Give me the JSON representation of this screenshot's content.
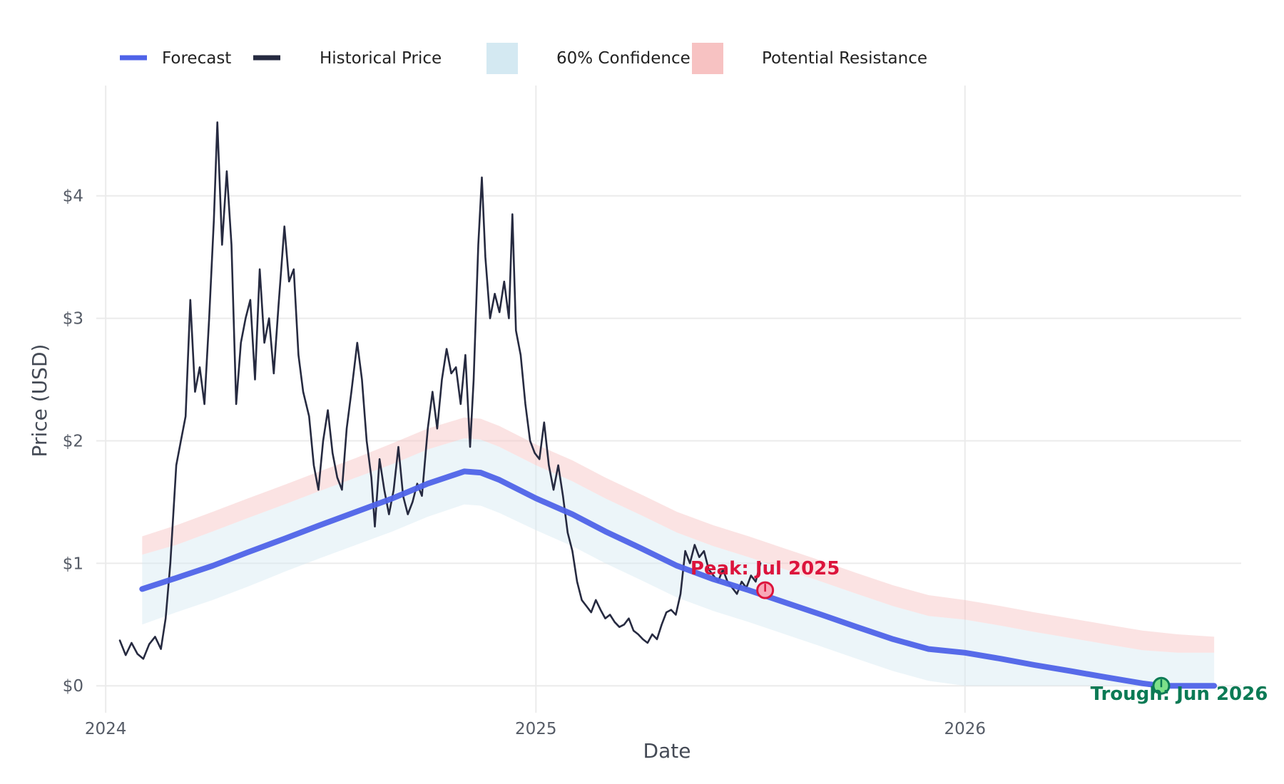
{
  "chart_data": {
    "type": "line",
    "title": "",
    "xlabel": "Date",
    "ylabel": "Price (USD)",
    "x_ticks": [
      "2024",
      "2025",
      "2026"
    ],
    "y_ticks": [
      "$0",
      "$1",
      "$2",
      "$3",
      "$4"
    ],
    "xlim": [
      "2023-12-24",
      "2026-08-24"
    ],
    "ylim": [
      -0.22,
      4.9
    ],
    "grid": true,
    "legend_position": "top-left",
    "legend": [
      {
        "label": "Forecast",
        "kind": "line",
        "color": "#4f63e8"
      },
      {
        "label": "Historical Price",
        "kind": "line",
        "color": "#262a40"
      },
      {
        "label": "60% Confidence",
        "kind": "patch",
        "color": "#d4e9f2"
      },
      {
        "label": "Potential Resistance",
        "kind": "patch",
        "color": "#f7c2c2"
      }
    ],
    "series": [
      {
        "name": "Historical Price",
        "color": "#262a40",
        "points": [
          [
            "2024-01-13",
            0.37
          ],
          [
            "2024-01-18",
            0.25
          ],
          [
            "2024-01-23",
            0.35
          ],
          [
            "2024-01-28",
            0.26
          ],
          [
            "2024-02-02",
            0.22
          ],
          [
            "2024-02-07",
            0.34
          ],
          [
            "2024-02-12",
            0.4
          ],
          [
            "2024-02-17",
            0.3
          ],
          [
            "2024-02-21",
            0.55
          ],
          [
            "2024-02-25",
            1.0
          ],
          [
            "2024-03-01",
            1.8
          ],
          [
            "2024-03-05",
            2.0
          ],
          [
            "2024-03-09",
            2.2
          ],
          [
            "2024-03-13",
            3.15
          ],
          [
            "2024-03-17",
            2.4
          ],
          [
            "2024-03-21",
            2.6
          ],
          [
            "2024-03-25",
            2.3
          ],
          [
            "2024-03-29",
            3.0
          ],
          [
            "2024-04-02",
            3.8
          ],
          [
            "2024-04-05",
            4.6
          ],
          [
            "2024-04-09",
            3.6
          ],
          [
            "2024-04-13",
            4.2
          ],
          [
            "2024-04-17",
            3.6
          ],
          [
            "2024-04-21",
            2.3
          ],
          [
            "2024-04-25",
            2.8
          ],
          [
            "2024-04-29",
            3.0
          ],
          [
            "2024-05-03",
            3.15
          ],
          [
            "2024-05-07",
            2.5
          ],
          [
            "2024-05-11",
            3.4
          ],
          [
            "2024-05-15",
            2.8
          ],
          [
            "2024-05-19",
            3.0
          ],
          [
            "2024-05-23",
            2.55
          ],
          [
            "2024-05-27",
            3.1
          ],
          [
            "2024-06-01",
            3.75
          ],
          [
            "2024-06-05",
            3.3
          ],
          [
            "2024-06-09",
            3.4
          ],
          [
            "2024-06-13",
            2.7
          ],
          [
            "2024-06-17",
            2.4
          ],
          [
            "2024-06-22",
            2.2
          ],
          [
            "2024-06-26",
            1.8
          ],
          [
            "2024-06-30",
            1.6
          ],
          [
            "2024-07-04",
            2.0
          ],
          [
            "2024-07-08",
            2.25
          ],
          [
            "2024-07-12",
            1.9
          ],
          [
            "2024-07-16",
            1.7
          ],
          [
            "2024-07-20",
            1.6
          ],
          [
            "2024-07-24",
            2.1
          ],
          [
            "2024-07-28",
            2.4
          ],
          [
            "2024-08-02",
            2.8
          ],
          [
            "2024-08-06",
            2.5
          ],
          [
            "2024-08-10",
            2.0
          ],
          [
            "2024-08-14",
            1.7
          ],
          [
            "2024-08-17",
            1.3
          ],
          [
            "2024-08-21",
            1.85
          ],
          [
            "2024-08-25",
            1.6
          ],
          [
            "2024-08-29",
            1.4
          ],
          [
            "2024-09-02",
            1.6
          ],
          [
            "2024-09-06",
            1.95
          ],
          [
            "2024-09-10",
            1.55
          ],
          [
            "2024-09-14",
            1.4
          ],
          [
            "2024-09-18",
            1.5
          ],
          [
            "2024-09-22",
            1.65
          ],
          [
            "2024-09-26",
            1.55
          ],
          [
            "2024-10-01",
            2.1
          ],
          [
            "2024-10-05",
            2.4
          ],
          [
            "2024-10-09",
            2.1
          ],
          [
            "2024-10-13",
            2.5
          ],
          [
            "2024-10-17",
            2.75
          ],
          [
            "2024-10-21",
            2.55
          ],
          [
            "2024-10-25",
            2.6
          ],
          [
            "2024-10-29",
            2.3
          ],
          [
            "2024-11-02",
            2.7
          ],
          [
            "2024-11-06",
            1.95
          ],
          [
            "2024-11-09",
            2.5
          ],
          [
            "2024-11-13",
            3.6
          ],
          [
            "2024-11-16",
            4.15
          ],
          [
            "2024-11-19",
            3.5
          ],
          [
            "2024-11-23",
            3.0
          ],
          [
            "2024-11-27",
            3.2
          ],
          [
            "2024-12-01",
            3.05
          ],
          [
            "2024-12-05",
            3.3
          ],
          [
            "2024-12-09",
            3.0
          ],
          [
            "2024-12-12",
            3.85
          ],
          [
            "2024-12-15",
            2.9
          ],
          [
            "2024-12-19",
            2.7
          ],
          [
            "2024-12-23",
            2.3
          ],
          [
            "2024-12-27",
            2.0
          ],
          [
            "2024-12-31",
            1.9
          ],
          [
            "2025-01-04",
            1.85
          ],
          [
            "2025-01-08",
            2.15
          ],
          [
            "2025-01-12",
            1.8
          ],
          [
            "2025-01-16",
            1.6
          ],
          [
            "2025-01-20",
            1.8
          ],
          [
            "2025-01-24",
            1.55
          ],
          [
            "2025-01-28",
            1.25
          ],
          [
            "2025-02-01",
            1.1
          ],
          [
            "2025-02-05",
            0.85
          ],
          [
            "2025-02-09",
            0.7
          ],
          [
            "2025-02-13",
            0.65
          ],
          [
            "2025-02-17",
            0.6
          ],
          [
            "2025-02-21",
            0.7
          ],
          [
            "2025-02-25",
            0.62
          ],
          [
            "2025-03-01",
            0.55
          ],
          [
            "2025-03-05",
            0.58
          ],
          [
            "2025-03-09",
            0.52
          ],
          [
            "2025-03-13",
            0.48
          ],
          [
            "2025-03-17",
            0.5
          ],
          [
            "2025-03-21",
            0.55
          ],
          [
            "2025-03-25",
            0.45
          ],
          [
            "2025-03-29",
            0.42
          ],
          [
            "2025-04-02",
            0.38
          ],
          [
            "2025-04-06",
            0.35
          ],
          [
            "2025-04-10",
            0.42
          ],
          [
            "2025-04-14",
            0.38
          ],
          [
            "2025-04-18",
            0.5
          ],
          [
            "2025-04-22",
            0.6
          ],
          [
            "2025-04-26",
            0.62
          ],
          [
            "2025-04-30",
            0.58
          ],
          [
            "2025-05-04",
            0.75
          ],
          [
            "2025-05-08",
            1.1
          ],
          [
            "2025-05-12",
            1.0
          ],
          [
            "2025-05-16",
            1.15
          ],
          [
            "2025-05-20",
            1.05
          ],
          [
            "2025-05-24",
            1.1
          ],
          [
            "2025-05-28",
            0.95
          ],
          [
            "2025-06-01",
            0.9
          ],
          [
            "2025-06-05",
            0.85
          ],
          [
            "2025-06-09",
            0.95
          ],
          [
            "2025-06-13",
            0.85
          ],
          [
            "2025-06-17",
            0.8
          ],
          [
            "2025-06-21",
            0.75
          ],
          [
            "2025-06-25",
            0.85
          ],
          [
            "2025-06-29",
            0.8
          ],
          [
            "2025-07-03",
            0.9
          ],
          [
            "2025-07-07",
            0.85
          ],
          [
            "2025-07-11",
            1.0
          ]
        ]
      },
      {
        "name": "Forecast",
        "color": "#4f63e8",
        "points": [
          [
            "2024-02-01",
            0.79
          ],
          [
            "2024-03-01",
            0.88
          ],
          [
            "2024-04-01",
            0.98
          ],
          [
            "2024-05-01",
            1.09
          ],
          [
            "2024-06-01",
            1.2
          ],
          [
            "2024-07-01",
            1.31
          ],
          [
            "2024-08-01",
            1.42
          ],
          [
            "2024-09-01",
            1.53
          ],
          [
            "2024-10-01",
            1.65
          ],
          [
            "2024-11-01",
            1.75
          ],
          [
            "2024-11-15",
            1.74
          ],
          [
            "2024-12-01",
            1.68
          ],
          [
            "2025-01-01",
            1.53
          ],
          [
            "2025-02-01",
            1.4
          ],
          [
            "2025-03-01",
            1.26
          ],
          [
            "2025-04-01",
            1.12
          ],
          [
            "2025-05-01",
            0.98
          ],
          [
            "2025-06-01",
            0.87
          ],
          [
            "2025-07-01",
            0.78
          ],
          [
            "2025-08-01",
            0.68
          ],
          [
            "2025-09-01",
            0.58
          ],
          [
            "2025-10-01",
            0.48
          ],
          [
            "2025-11-01",
            0.38
          ],
          [
            "2025-12-01",
            0.3
          ],
          [
            "2026-01-01",
            0.27
          ],
          [
            "2026-02-01",
            0.22
          ],
          [
            "2026-03-01",
            0.17
          ],
          [
            "2026-04-01",
            0.12
          ],
          [
            "2026-05-01",
            0.07
          ],
          [
            "2026-06-01",
            0.02
          ],
          [
            "2026-06-17",
            0.0
          ],
          [
            "2026-07-01",
            0.0
          ],
          [
            "2026-08-01",
            0.0
          ]
        ]
      }
    ],
    "confidence_band": {
      "name": "60% Confidence",
      "color": "#d4e9f2",
      "points": [
        [
          "2024-02-01",
          0.5,
          1.07
        ],
        [
          "2024-03-01",
          0.6,
          1.15
        ],
        [
          "2024-04-01",
          0.7,
          1.26
        ],
        [
          "2024-05-01",
          0.81,
          1.37
        ],
        [
          "2024-06-01",
          0.93,
          1.48
        ],
        [
          "2024-07-01",
          1.04,
          1.59
        ],
        [
          "2024-08-01",
          1.15,
          1.7
        ],
        [
          "2024-09-01",
          1.26,
          1.81
        ],
        [
          "2024-10-01",
          1.38,
          1.93
        ],
        [
          "2024-11-01",
          1.48,
          2.02
        ],
        [
          "2024-11-15",
          1.47,
          2.01
        ],
        [
          "2024-12-01",
          1.41,
          1.95
        ],
        [
          "2025-01-01",
          1.27,
          1.8
        ],
        [
          "2025-02-01",
          1.14,
          1.67
        ],
        [
          "2025-03-01",
          1.0,
          1.53
        ],
        [
          "2025-04-01",
          0.86,
          1.39
        ],
        [
          "2025-05-01",
          0.72,
          1.25
        ],
        [
          "2025-06-01",
          0.61,
          1.14
        ],
        [
          "2025-07-01",
          0.52,
          1.05
        ],
        [
          "2025-08-01",
          0.42,
          0.95
        ],
        [
          "2025-09-01",
          0.32,
          0.85
        ],
        [
          "2025-10-01",
          0.22,
          0.75
        ],
        [
          "2025-11-01",
          0.12,
          0.65
        ],
        [
          "2025-12-01",
          0.04,
          0.57
        ],
        [
          "2026-01-01",
          0.0,
          0.54
        ],
        [
          "2026-02-01",
          0.0,
          0.49
        ],
        [
          "2026-03-01",
          0.0,
          0.44
        ],
        [
          "2026-04-01",
          0.0,
          0.39
        ],
        [
          "2026-05-01",
          0.0,
          0.34
        ],
        [
          "2026-06-01",
          0.0,
          0.29
        ],
        [
          "2026-07-01",
          0.0,
          0.27
        ],
        [
          "2026-08-01",
          0.0,
          0.27
        ]
      ]
    },
    "resistance_band": {
      "name": "Potential Resistance",
      "color": "#f7c2c2",
      "points": [
        [
          "2024-02-01",
          1.07,
          1.22
        ],
        [
          "2024-03-01",
          1.15,
          1.31
        ],
        [
          "2024-04-01",
          1.26,
          1.42
        ],
        [
          "2024-05-01",
          1.37,
          1.53
        ],
        [
          "2024-06-01",
          1.48,
          1.64
        ],
        [
          "2024-07-01",
          1.59,
          1.75
        ],
        [
          "2024-08-01",
          1.7,
          1.86
        ],
        [
          "2024-09-01",
          1.81,
          1.98
        ],
        [
          "2024-10-01",
          1.93,
          2.1
        ],
        [
          "2024-11-01",
          2.02,
          2.19
        ],
        [
          "2024-11-15",
          2.01,
          2.18
        ],
        [
          "2024-12-01",
          1.95,
          2.12
        ],
        [
          "2025-01-01",
          1.8,
          1.97
        ],
        [
          "2025-02-01",
          1.67,
          1.84
        ],
        [
          "2025-03-01",
          1.53,
          1.7
        ],
        [
          "2025-04-01",
          1.39,
          1.56
        ],
        [
          "2025-05-01",
          1.25,
          1.42
        ],
        [
          "2025-06-01",
          1.14,
          1.31
        ],
        [
          "2025-07-01",
          1.05,
          1.22
        ],
        [
          "2025-08-01",
          0.95,
          1.12
        ],
        [
          "2025-09-01",
          0.85,
          1.02
        ],
        [
          "2025-10-01",
          0.75,
          0.92
        ],
        [
          "2025-11-01",
          0.65,
          0.82
        ],
        [
          "2025-12-01",
          0.57,
          0.74
        ],
        [
          "2026-01-01",
          0.54,
          0.7
        ],
        [
          "2026-02-01",
          0.49,
          0.65
        ],
        [
          "2026-03-01",
          0.44,
          0.6
        ],
        [
          "2026-04-01",
          0.39,
          0.55
        ],
        [
          "2026-05-01",
          0.34,
          0.5
        ],
        [
          "2026-06-01",
          0.29,
          0.45
        ],
        [
          "2026-07-01",
          0.27,
          0.42
        ],
        [
          "2026-08-01",
          0.27,
          0.4
        ]
      ]
    },
    "annotations": [
      {
        "label": "Peak: Jul 2025",
        "date": "2025-07-15",
        "value": 0.78,
        "color": "#dc143c",
        "marker_fill": "#f8a8b8"
      },
      {
        "label": "Trough: Jun 2026",
        "date": "2026-06-17",
        "value": 0.0,
        "color": "#0b7a55",
        "marker_fill": "#7ee08a"
      }
    ]
  }
}
